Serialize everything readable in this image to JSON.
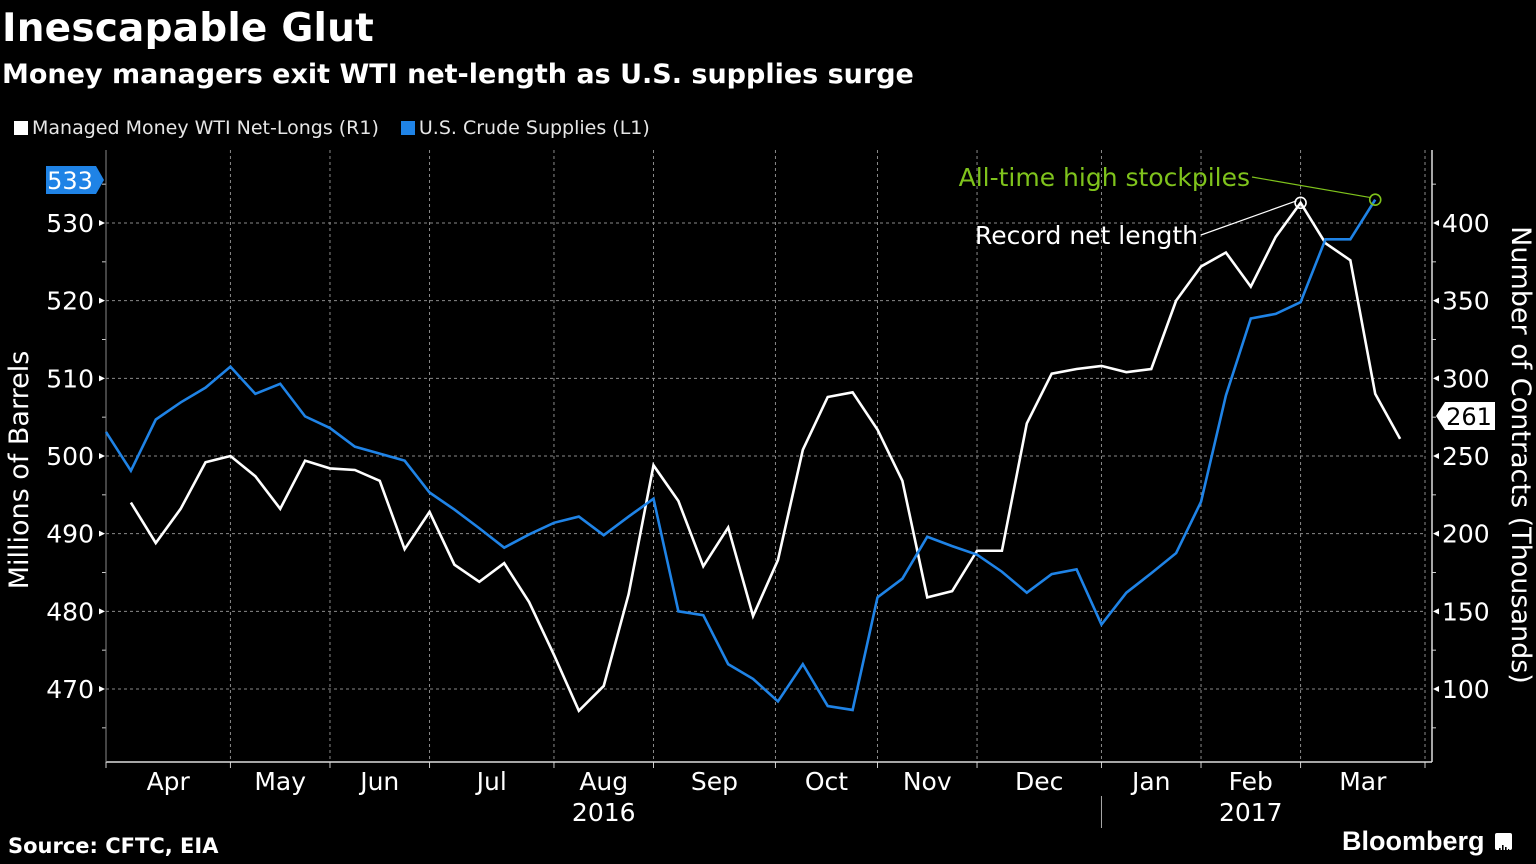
{
  "header": {
    "title": "Inescapable Glut",
    "subtitle": "Money managers exit WTI net-length as U.S. supplies surge"
  },
  "legend": [
    {
      "label": "Managed Money WTI Net-Longs (R1)",
      "color": "#ffffff"
    },
    {
      "label": "U.S. Crude Supplies (L1)",
      "color": "#1f83e6"
    }
  ],
  "footer": {
    "source": "Source: CFTC, EIA",
    "brand": "Bloomberg",
    "brand_icon": "bloomberg-chart-icon"
  },
  "chart_data": {
    "type": "line",
    "title": "Inescapable Glut",
    "subtitle": "Money managers exit WTI net-length as U.S. supplies surge",
    "xlabel": "",
    "ylabel_left": "Millions of Barrels",
    "ylabel_right": "Number of Contracts (Thousands)",
    "ylim_left": [
      461,
      538
    ],
    "ylim_right": [
      55,
      440
    ],
    "yticks_left": [
      470,
      480,
      490,
      500,
      510,
      520,
      530
    ],
    "yticks_right": [
      100,
      150,
      200,
      250,
      300,
      350,
      400
    ],
    "grid": true,
    "legend_position": "top-left",
    "x_tick_labels": [
      "Apr",
      "May",
      "Jun",
      "Jul",
      "Aug",
      "Sep",
      "Oct",
      "Nov",
      "Dec",
      "Jan",
      "Feb",
      "Mar"
    ],
    "x_month_start_week": [
      0,
      5,
      9,
      13,
      18,
      22,
      26.9,
      31,
      35,
      40,
      44,
      48,
      53
    ],
    "x_year_labels": [
      {
        "label": "2016",
        "under": "Aug"
      },
      {
        "label": "2017",
        "under": "Feb"
      }
    ],
    "x_weeks": 53,
    "series": [
      {
        "name": "Managed Money WTI Net-Longs (R1)",
        "axis": "right",
        "color": "#ffffff",
        "start_week": 1,
        "values": [
          220,
          194,
          216,
          246,
          250,
          237,
          216,
          247,
          242,
          241,
          234,
          190,
          214,
          180,
          169,
          181,
          156,
          122,
          86,
          102,
          161,
          244,
          221,
          179,
          204,
          147,
          183,
          254,
          288,
          291,
          267,
          234,
          159,
          163,
          189,
          189,
          271,
          303,
          306,
          308,
          304,
          306,
          350,
          372,
          381,
          359,
          391,
          413,
          387,
          376,
          290,
          261
        ],
        "last_value_label": "261"
      },
      {
        "name": "U.S. Crude Supplies (L1)",
        "axis": "left",
        "color": "#1f83e6",
        "start_week": 0,
        "values": [
          503.1,
          498.1,
          504.7,
          506.9,
          508.8,
          511.5,
          508.0,
          509.3,
          505.1,
          503.6,
          501.2,
          500.3,
          499.4,
          495.3,
          493.1,
          490.7,
          488.2,
          489.9,
          491.4,
          492.2,
          489.8,
          492.2,
          494.5,
          480.0,
          479.5,
          473.2,
          471.3,
          468.4,
          473.2,
          467.8,
          467.3,
          481.8,
          484.2,
          489.6,
          488.4,
          487.3,
          485.1,
          482.4,
          484.8,
          485.4,
          478.3,
          482.4,
          484.9,
          487.5,
          494.1,
          507.8,
          517.7,
          518.3,
          519.8,
          527.9,
          527.9,
          533
        ],
        "last_value_label": "533"
      }
    ],
    "annotations": [
      {
        "text": "All-time high stockpiles",
        "color": "#7fc31c",
        "series": "U.S. Crude Supplies (L1)",
        "week": 51
      },
      {
        "text": "Record net length",
        "color": "#ffffff",
        "series": "Managed Money WTI Net-Longs (R1)",
        "week": 48
      }
    ]
  }
}
